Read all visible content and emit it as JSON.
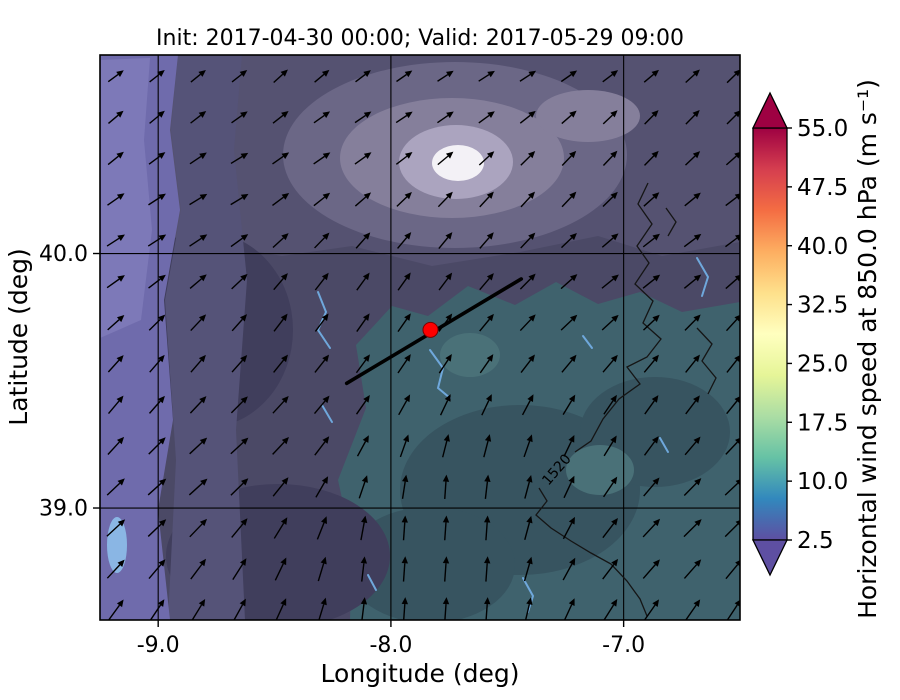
{
  "chart_data": {
    "type": "heatmap",
    "title": "Init: 2017-04-30 00:00; Valid: 2017-05-29 09:00",
    "xlabel": "Longitude (deg)",
    "ylabel": "Latitude (deg)",
    "xlim": [
      -9.25,
      -6.5
    ],
    "ylim": [
      38.56,
      40.78
    ],
    "x_ticks": [
      -9.0,
      -8.0,
      -7.0
    ],
    "x_tick_labels": [
      "-9.0",
      "-8.0",
      "-7.0"
    ],
    "y_ticks": [
      40.0,
      39.0
    ],
    "y_tick_labels": [
      "40.0",
      "39.0"
    ],
    "grid": true,
    "field": "horizontal wind speed at 850.0 hPa",
    "units": "m s⁻¹",
    "field_summary": "Wind speeds mostly 2.5-12.5 m/s: light purple band (~2.5-5) along western edge, dark slate purple (~5-7.5) over most of the domain, teal (~10-12.5) in the south-east sector, pale patch (~20-25) near top centre",
    "colorbar": {
      "label": "Horizontal wind speed at 850.0 hPa (m s⁻¹)",
      "vmin": 2.5,
      "vmax": 55.0,
      "ticks": [
        55.0,
        47.5,
        40.0,
        32.5,
        25.0,
        17.5,
        10.0,
        2.5
      ],
      "tick_labels": [
        "55.0",
        "47.5",
        "40.0",
        "32.5",
        "25.0",
        "17.5",
        "10.0",
        "2.5"
      ],
      "extend": "both",
      "cmap": "Spectral_r",
      "under_color": "#5e4fa2",
      "over_color": "#9e0142",
      "gradient_stops": [
        {
          "t": 0.0,
          "c": "#5e4fa2"
        },
        {
          "t": 0.1,
          "c": "#3288bd"
        },
        {
          "t": 0.2,
          "c": "#66c2a5"
        },
        {
          "t": 0.3,
          "c": "#abdda4"
        },
        {
          "t": 0.4,
          "c": "#e6f598"
        },
        {
          "t": 0.5,
          "c": "#ffffbf"
        },
        {
          "t": 0.6,
          "c": "#fee08b"
        },
        {
          "t": 0.7,
          "c": "#fdae61"
        },
        {
          "t": 0.8,
          "c": "#f46d43"
        },
        {
          "t": 0.9,
          "c": "#d53e4f"
        },
        {
          "t": 1.0,
          "c": "#9e0142"
        }
      ]
    },
    "overlays": {
      "cross_section_line": {
        "from": [
          -8.19,
          39.49
        ],
        "to": [
          -7.44,
          39.9
        ],
        "color": "#000000"
      },
      "marker": {
        "lon": -7.83,
        "lat": 39.7,
        "color": "#ff0000",
        "edge": "#7a0000"
      },
      "contour_label": {
        "text": "1520"
      },
      "quiver": {
        "color": "#000000",
        "cols": 16,
        "rows": 14,
        "description": "wind arrows point north-east over most of the domain, veering to northward flow in the south-central sector"
      }
    },
    "field_colors": {
      "base": "#4b4966",
      "upper_slate": "#555271",
      "band2": "#555378",
      "light_band_west": "#6f6bac",
      "light_band_west_edge": "#7d79b8",
      "upper_gray": "#6b6786",
      "upper_gray2": "#857f9b",
      "pale_ring": "#aba4bf",
      "white_core": "#f3f1f6",
      "teal": "#3f626d",
      "teal_dark": "#375460",
      "teal_light": "#4a7178",
      "navy_dark": "#403e5c",
      "river": "#6fa8dc",
      "reservoir": "#8ab6e4",
      "contour": "#151515",
      "grid": "#000000"
    }
  }
}
